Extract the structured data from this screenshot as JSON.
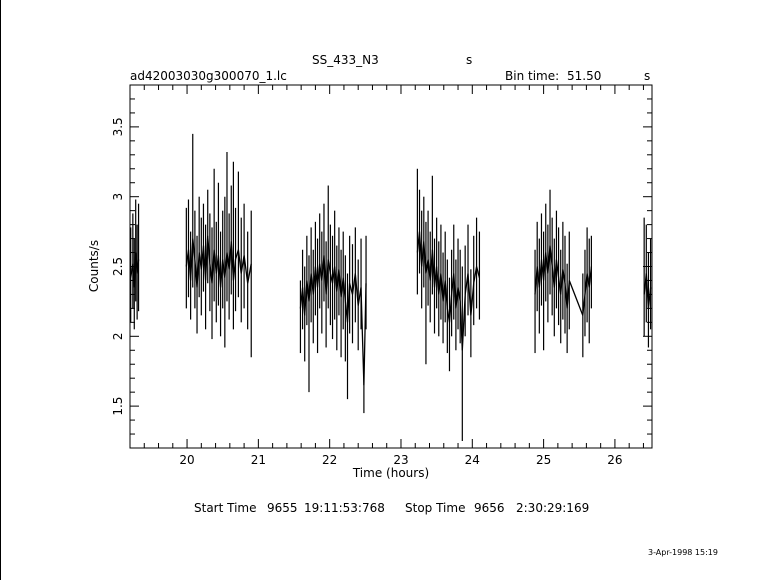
{
  "header": {
    "title": "SS_433_N3",
    "title_suffix": "s",
    "filename": "ad42003030g300070_1.lc",
    "bin_label": "Bin time:",
    "bin_value": "51.50",
    "bin_unit": "s"
  },
  "footer": {
    "start_label": "Start Time",
    "start_day": "9655",
    "start_time": "19:11:53:768",
    "stop_label": "Stop Time",
    "stop_day": "9656",
    "stop_time": "2:30:29:169",
    "date_stamp": "3-Apr-1998 15:19"
  },
  "chart_data": {
    "type": "line",
    "xlabel": "Time (hours)",
    "ylabel": "Counts/s",
    "xlim": [
      19.2,
      26.52
    ],
    "ylim": [
      1.2,
      3.8
    ],
    "xticks": [
      20,
      21,
      22,
      23,
      24,
      25,
      26
    ],
    "yticks": [
      1.5,
      2,
      2.5,
      3,
      3.5
    ],
    "segments": [
      {
        "x_start": 19.2,
        "x_end": 19.33,
        "points": [
          [
            19.21,
            2.42,
            2.78,
            2.1
          ],
          [
            19.24,
            2.52,
            2.88,
            2.2
          ],
          [
            19.26,
            2.35,
            2.7,
            2.05
          ],
          [
            19.28,
            2.6,
            2.98,
            2.25
          ],
          [
            19.3,
            2.45,
            2.8,
            2.12
          ],
          [
            19.32,
            2.55,
            2.95,
            2.18
          ]
        ]
      },
      {
        "x_start": 19.98,
        "x_end": 20.93,
        "points": [
          [
            19.99,
            2.5,
            2.92,
            2.2
          ],
          [
            20.02,
            2.62,
            2.98,
            2.28
          ],
          [
            20.05,
            2.4,
            2.75,
            2.12
          ],
          [
            20.08,
            2.7,
            3.45,
            2.35
          ],
          [
            20.11,
            2.55,
            2.9,
            2.2
          ],
          [
            20.14,
            2.35,
            2.72,
            2.02
          ],
          [
            20.17,
            2.6,
            3.0,
            2.28
          ],
          [
            20.2,
            2.48,
            2.85,
            2.15
          ],
          [
            20.23,
            2.65,
            2.95,
            2.32
          ],
          [
            20.26,
            2.4,
            2.8,
            2.05
          ],
          [
            20.29,
            2.72,
            3.05,
            2.38
          ],
          [
            20.32,
            2.52,
            2.88,
            2.18
          ],
          [
            20.35,
            2.38,
            2.78,
            1.98
          ],
          [
            20.38,
            2.62,
            3.2,
            2.25
          ],
          [
            20.41,
            2.45,
            2.82,
            2.1
          ],
          [
            20.44,
            2.58,
            3.1,
            2.22
          ],
          [
            20.47,
            2.35,
            2.75,
            2.0
          ],
          [
            20.5,
            2.55,
            2.9,
            2.2
          ],
          [
            20.53,
            2.42,
            3.0,
            1.92
          ],
          [
            20.56,
            2.6,
            3.32,
            2.25
          ],
          [
            20.59,
            2.48,
            2.88,
            2.12
          ],
          [
            20.62,
            2.68,
            3.08,
            2.3
          ],
          [
            20.65,
            2.4,
            3.25,
            2.05
          ],
          [
            20.68,
            2.55,
            2.92,
            2.18
          ],
          [
            20.72,
            2.62,
            3.18,
            2.28
          ],
          [
            20.76,
            2.45,
            2.85,
            2.1
          ],
          [
            20.8,
            2.58,
            2.95,
            2.2
          ],
          [
            20.85,
            2.38,
            2.75,
            2.05
          ],
          [
            20.9,
            2.52,
            2.9,
            1.85
          ]
        ]
      },
      {
        "x_start": 21.58,
        "x_end": 22.52,
        "points": [
          [
            21.59,
            2.2,
            2.4,
            1.88
          ],
          [
            21.62,
            2.35,
            2.62,
            2.05
          ],
          [
            21.65,
            2.15,
            2.5,
            1.82
          ],
          [
            21.68,
            2.4,
            2.72,
            2.08
          ],
          [
            21.71,
            2.25,
            2.58,
            1.6
          ],
          [
            21.74,
            2.45,
            2.78,
            2.1
          ],
          [
            21.77,
            2.3,
            2.62,
            1.95
          ],
          [
            21.8,
            2.5,
            2.82,
            2.15
          ],
          [
            21.83,
            2.35,
            2.7,
            1.88
          ],
          [
            21.86,
            2.52,
            2.88,
            2.2
          ],
          [
            21.89,
            2.4,
            2.75,
            2.02
          ],
          [
            21.92,
            2.58,
            2.95,
            2.25
          ],
          [
            21.95,
            2.3,
            2.68,
            1.92
          ],
          [
            21.98,
            2.55,
            3.08,
            2.2
          ],
          [
            22.01,
            2.45,
            2.8,
            2.08
          ],
          [
            22.04,
            2.38,
            2.72,
            1.98
          ],
          [
            22.07,
            2.5,
            2.9,
            2.12
          ],
          [
            22.1,
            2.32,
            2.65,
            1.9
          ],
          [
            22.13,
            2.48,
            2.78,
            2.15
          ],
          [
            22.16,
            2.28,
            2.62,
            1.85
          ],
          [
            22.19,
            2.42,
            2.75,
            2.05
          ],
          [
            22.22,
            2.25,
            2.58,
            1.82
          ],
          [
            22.25,
            2.1,
            2.45,
            1.55
          ],
          [
            22.28,
            2.38,
            2.72,
            2.02
          ],
          [
            22.32,
            2.3,
            2.66,
            1.95
          ],
          [
            22.36,
            2.45,
            2.78,
            2.1
          ],
          [
            22.4,
            2.22,
            2.55,
            1.9
          ],
          [
            22.44,
            2.35,
            2.7,
            2.05
          ],
          [
            22.48,
            1.65,
            1.78,
            1.45
          ],
          [
            22.51,
            2.38,
            2.72,
            2.05
          ]
        ]
      },
      {
        "x_start": 23.22,
        "x_end": 24.12,
        "points": [
          [
            23.23,
            2.6,
            3.2,
            2.3
          ],
          [
            23.26,
            2.75,
            3.05,
            2.45
          ],
          [
            23.29,
            2.5,
            2.9,
            2.2
          ],
          [
            23.32,
            2.68,
            3.0,
            2.35
          ],
          [
            23.35,
            2.45,
            2.82,
            1.8
          ],
          [
            23.38,
            2.55,
            2.9,
            2.22
          ],
          [
            23.41,
            2.4,
            2.75,
            2.1
          ],
          [
            23.44,
            2.62,
            3.15,
            2.3
          ],
          [
            23.47,
            2.35,
            2.7,
            2.02
          ],
          [
            23.5,
            2.5,
            2.85,
            2.2
          ],
          [
            23.53,
            2.3,
            2.68,
            2.0
          ],
          [
            23.56,
            2.45,
            2.8,
            2.12
          ],
          [
            23.59,
            2.25,
            2.6,
            1.95
          ],
          [
            23.62,
            2.4,
            2.75,
            2.1
          ],
          [
            23.65,
            2.2,
            2.55,
            1.88
          ],
          [
            23.68,
            2.1,
            2.42,
            1.75
          ],
          [
            23.71,
            2.3,
            2.62,
            2.0
          ],
          [
            23.74,
            2.45,
            2.8,
            2.12
          ],
          [
            23.77,
            2.2,
            2.55,
            1.9
          ],
          [
            23.8,
            2.35,
            2.7,
            2.05
          ],
          [
            23.83,
            2.25,
            2.62,
            1.95
          ],
          [
            23.86,
            1.9,
            2.5,
            1.25
          ],
          [
            23.9,
            2.3,
            2.65,
            2.0
          ],
          [
            23.94,
            2.45,
            2.8,
            2.15
          ],
          [
            23.98,
            2.15,
            2.48,
            1.85
          ],
          [
            24.02,
            2.38,
            2.72,
            2.08
          ],
          [
            24.06,
            2.5,
            2.85,
            2.2
          ],
          [
            24.1,
            2.42,
            2.75,
            2.12
          ]
        ]
      },
      {
        "x_start": 24.87,
        "x_end": 25.68,
        "points": [
          [
            24.88,
            2.3,
            2.62,
            1.88
          ],
          [
            24.91,
            2.5,
            2.82,
            2.18
          ],
          [
            24.94,
            2.35,
            2.7,
            2.02
          ],
          [
            24.97,
            2.55,
            2.88,
            2.22
          ],
          [
            25.0,
            2.4,
            2.75,
            1.9
          ],
          [
            25.03,
            2.6,
            2.95,
            2.25
          ],
          [
            25.06,
            2.45,
            2.8,
            2.1
          ],
          [
            25.09,
            2.65,
            3.05,
            2.3
          ],
          [
            25.12,
            2.5,
            2.85,
            2.15
          ],
          [
            25.15,
            2.35,
            2.7,
            2.0
          ],
          [
            25.18,
            2.55,
            2.9,
            2.2
          ],
          [
            25.21,
            2.42,
            2.78,
            2.08
          ],
          [
            25.24,
            2.3,
            2.62,
            1.95
          ],
          [
            25.27,
            2.48,
            2.82,
            2.12
          ],
          [
            25.3,
            2.38,
            2.72,
            2.02
          ],
          [
            25.33,
            2.2,
            2.52,
            1.88
          ],
          [
            25.36,
            2.4,
            2.75,
            2.05
          ],
          [
            25.55,
            2.15,
            2.45,
            1.85
          ],
          [
            25.58,
            2.3,
            2.62,
            2.0
          ],
          [
            25.61,
            2.45,
            2.78,
            2.1
          ],
          [
            25.64,
            2.35,
            2.7,
            1.95
          ],
          [
            25.67,
            2.5,
            2.72,
            2.2
          ]
        ]
      },
      {
        "x_start": 26.4,
        "x_end": 26.52,
        "points": [
          [
            26.41,
            2.3,
            2.85,
            2.0
          ],
          [
            26.44,
            2.45,
            2.8,
            2.1
          ],
          [
            26.47,
            2.2,
            2.6,
            1.92
          ],
          [
            26.5,
            2.35,
            2.7,
            2.05
          ]
        ]
      }
    ]
  }
}
